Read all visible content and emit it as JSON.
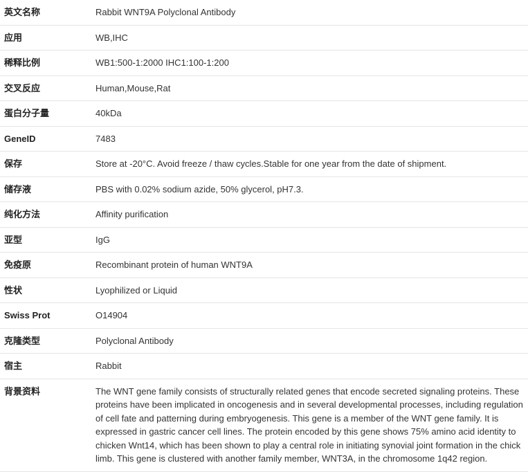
{
  "rows": [
    {
      "label": "英文名称",
      "value": "Rabbit WNT9A Polyclonal Antibody"
    },
    {
      "label": "应用",
      "value": "WB,IHC"
    },
    {
      "label": "稀释比例",
      "value": "WB1:500-1:2000 IHC1:100-1:200"
    },
    {
      "label": "交叉反应",
      "value": "Human,Mouse,Rat"
    },
    {
      "label": "蛋白分子量",
      "value": "40kDa"
    },
    {
      "label": "GeneID",
      "value": "7483"
    },
    {
      "label": "保存",
      "value": "Store at -20°C. Avoid freeze / thaw cycles.Stable for one year from the date of shipment."
    },
    {
      "label": "储存液",
      "value": "PBS with 0.02% sodium azide, 50% glycerol, pH7.3."
    },
    {
      "label": "纯化方法",
      "value": "Affinity purification"
    },
    {
      "label": "亚型",
      "value": "IgG"
    },
    {
      "label": "免疫原",
      "value": "Recombinant protein of human WNT9A"
    },
    {
      "label": "性状",
      "value": "Lyophilized or Liquid"
    },
    {
      "label": "Swiss Prot",
      "value": "O14904"
    },
    {
      "label": "克隆类型",
      "value": "Polyclonal Antibody"
    },
    {
      "label": "宿主",
      "value": "Rabbit"
    },
    {
      "label": "背景资料",
      "value": "The WNT gene family consists of structurally related genes that encode secreted signaling proteins. These proteins have been implicated in oncogenesis and in several developmental processes, including regulation of cell fate and patterning during embryogenesis. This gene is a member of the WNT gene family. It is expressed in gastric cancer cell lines. The protein encoded by this gene shows 75% amino acid identity to chicken Wnt14, which has been shown to play a central role in initiating synovial joint formation in the chick limb. This gene is clustered with another family member, WNT3A, in the chromosome 1q42 region."
    }
  ]
}
